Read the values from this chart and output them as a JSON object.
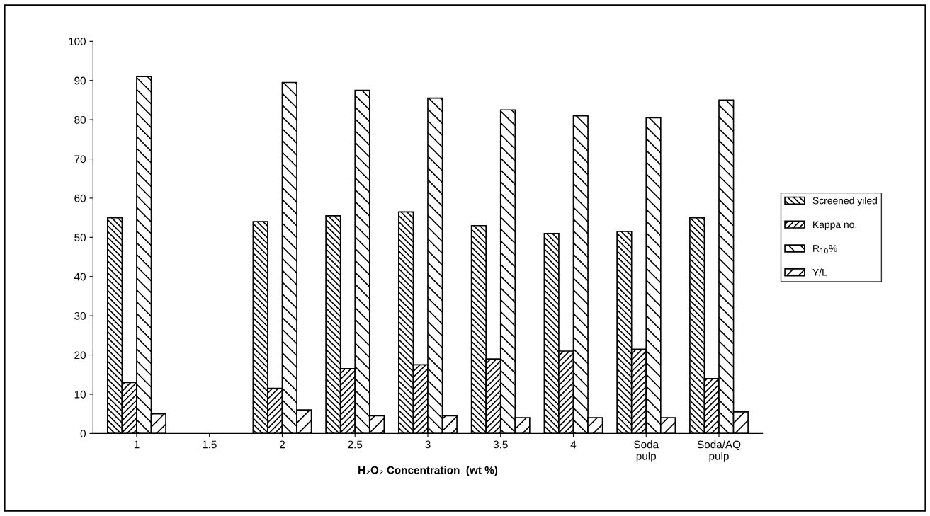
{
  "chart_data": {
    "type": "bar",
    "xlabel": "H₂O₂ Concentration  (wt %)",
    "categories": [
      "1",
      "1.5",
      "2",
      "2.5",
      "3",
      "3.5",
      "4",
      "Soda\npulp",
      "Soda/AQ\npulp"
    ],
    "series": [
      {
        "name": "Screened yiled",
        "color": "#000000",
        "values": [
          55,
          null,
          54,
          55.5,
          56.5,
          53,
          51,
          51.5,
          55
        ]
      },
      {
        "name": "Kappa no.",
        "color": "#000000",
        "values": [
          13,
          null,
          11.5,
          16.5,
          17.5,
          19,
          21,
          21.5,
          14
        ]
      },
      {
        "name": "R$_{10}$%",
        "color": "#000000",
        "values": [
          91,
          null,
          89.5,
          87.5,
          85.5,
          82.5,
          81,
          80.5,
          85
        ]
      },
      {
        "name": "Y/L",
        "color": "#000000",
        "values": [
          5,
          null,
          6,
          4.5,
          4.5,
          4,
          4,
          4,
          5.5
        ]
      }
    ],
    "ylim": [
      0,
      100
    ],
    "yticks": [
      0,
      10,
      20,
      30,
      40,
      50,
      60,
      70,
      80,
      90,
      100
    ],
    "grid": false,
    "legend": "right"
  }
}
